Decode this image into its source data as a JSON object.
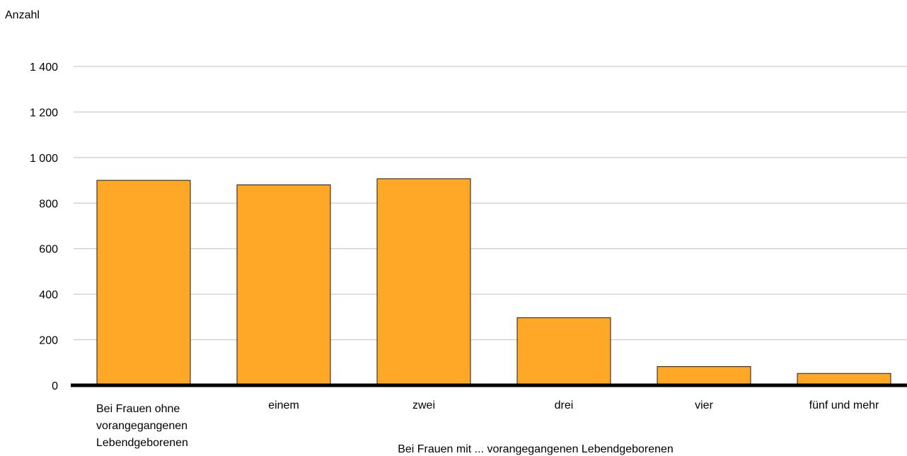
{
  "chart_data": {
    "type": "bar",
    "title": "",
    "ylabel": "Anzahl",
    "xlabel": "Bei Frauen mit ... vorangegangenen Lebendgeborenen",
    "categories": [
      "Bei Frauen ohne vorangegangenen Lebendgeborenen",
      "einem",
      "zwei",
      "drei",
      "vier",
      "fünf und mehr"
    ],
    "category_lines": [
      [
        "Bei Frauen ohne",
        "vorangegangenen",
        "Lebendgeborenen"
      ],
      [
        "einem"
      ],
      [
        "zwei"
      ],
      [
        "drei"
      ],
      [
        "vier"
      ],
      [
        "fünf und mehr"
      ]
    ],
    "values": [
      900,
      880,
      907,
      297,
      82,
      52
    ],
    "ylim": [
      0,
      1400
    ],
    "yticks": [
      0,
      200,
      400,
      600,
      800,
      1000,
      1200,
      1400
    ],
    "ytick_labels": [
      "0",
      "200",
      "400",
      "600",
      "800",
      "1 000",
      "1 200",
      "1 400"
    ],
    "grid": true,
    "colors": {
      "bar_fill": "#FFA726",
      "bar_stroke": "#1a1a1a",
      "grid": "#c0c0c0",
      "baseline": "#000000"
    }
  }
}
